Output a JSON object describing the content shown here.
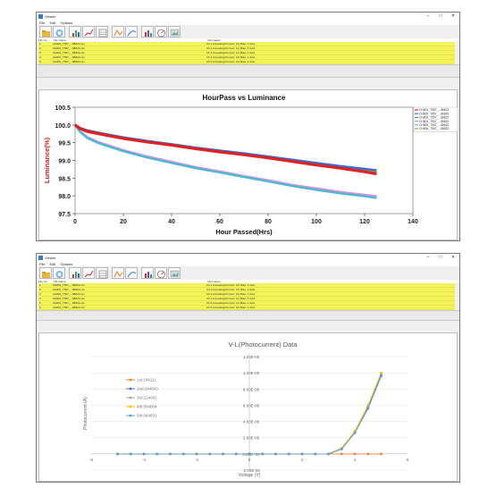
{
  "windows": [
    {
      "title": "Viewer",
      "menu": [
        "File",
        "Edit",
        "Options"
      ],
      "file_headers": {
        "no": "File No.",
        "name": "File Name",
        "info": "Information"
      },
      "files": [
        {
          "no": "1",
          "name": "CH801_T557_...88822.csv",
          "info": "Ch 1 Annealing/Current: CC Bias: 1.4mA"
        },
        {
          "no": "2",
          "name": "CH801_T557_...88822.csv",
          "info": "Ch 2 Annealing/Current: CC Bias: 1.4mA"
        },
        {
          "no": "3",
          "name": "CH801_T557_...88822.csv",
          "info": "Ch 3 Annealing/Current: CC Bias: 1.4mA"
        },
        {
          "no": "4",
          "name": "CH801_T557_...88822.csv",
          "info": "Ch 4 Annealing/Current: CC Bias: 1.4mA"
        },
        {
          "no": "5",
          "name": "CH801_T557_...88822.csv",
          "info": "Ch 5 Annealing/Current: CC Bias: 1.4mA"
        }
      ]
    },
    {
      "title": "Viewer",
      "menu": [
        "File",
        "Edit",
        "Options"
      ],
      "file_headers": {
        "no": "File No.",
        "name": "File Name",
        "info": "Information"
      },
      "files": [
        {
          "no": "1",
          "name": "CH801_T557_...88822.csv",
          "info": "Ch 1 Annealing/Current: CC Bias: 1.4mA"
        },
        {
          "no": "2",
          "name": "CH801_T557_...88822.csv",
          "info": "Ch 2 Annealing/Current: CC Bias: 1.4mA"
        },
        {
          "no": "3",
          "name": "CH801_T557_...88822.csv",
          "info": "Ch 3 Annealing/Current: CC Bias: 1.4mA"
        },
        {
          "no": "4",
          "name": "CH801_T557_...88822.csv",
          "info": "Ch 4 Annealing/Current: CC Bias: 1.4mA"
        },
        {
          "no": "5",
          "name": "CH801_T557_...88822.csv",
          "info": "Ch 5 Annealing/Current: CC Bias: 1.4mA"
        },
        {
          "no": "6",
          "name": "CH801_T557_...88822.csv",
          "info": "Ch 6 Annealing/Current: CC Bias: 1.4mA"
        }
      ]
    }
  ],
  "icons": [
    "open-folder-icon",
    "refresh-icon",
    "bar-chart-icon",
    "pencil-chart-icon",
    "table-icon",
    "peak-chart-icon",
    "curve-chart-icon",
    "color-chart-icon",
    "gauge-icon",
    "image-icon"
  ],
  "colors": {
    "yellow_row": "#f2f25a",
    "luminance_ylabel": "#c81e1e",
    "pass_series": [
      "#e22020",
      "#3a6bd0",
      "#3fae3f",
      "#d98fd0",
      "#4bb9d6",
      "#a8a23a"
    ],
    "vl_series": [
      "#ed7d31",
      "#4472c4",
      "#a5a5a5",
      "#ffc000",
      "#5b9bd5"
    ]
  },
  "chart_data": [
    {
      "type": "line",
      "title": "HourPass vs Luminance",
      "xlabel": "Hour Passed(Hrs)",
      "ylabel": "Luminance(%)",
      "xlim": [
        0,
        140
      ],
      "ylim": [
        97.5,
        100.5
      ],
      "xticks": [
        0,
        20,
        40,
        60,
        80,
        100,
        120,
        140
      ],
      "yticks": [
        97.5,
        98.0,
        98.5,
        99.0,
        99.5,
        100.0,
        100.5
      ],
      "legend_position": "top-right",
      "legend": [
        "CH801_T557_...88822",
        "CH802_T557_...88822",
        "CH803_T557_...88822",
        "CH804_T557_...88822",
        "CH805_T557_...88822",
        "CH806_T557_...88822"
      ],
      "series": [
        {
          "x": [
            0,
            2,
            5,
            10,
            20,
            30,
            40,
            50,
            60,
            70,
            80,
            90,
            100,
            110,
            120,
            125
          ],
          "y": [
            100.0,
            99.9,
            99.82,
            99.75,
            99.62,
            99.52,
            99.43,
            99.33,
            99.24,
            99.16,
            99.07,
            98.97,
            98.87,
            98.78,
            98.68,
            98.62
          ]
        },
        {
          "x": [
            0,
            2,
            5,
            10,
            20,
            30,
            40,
            50,
            60,
            70,
            80,
            90,
            100,
            110,
            120,
            125
          ],
          "y": [
            100.0,
            99.92,
            99.85,
            99.78,
            99.65,
            99.55,
            99.46,
            99.36,
            99.28,
            99.2,
            99.11,
            99.02,
            98.93,
            98.84,
            98.76,
            98.72
          ]
        },
        {
          "x": [
            0,
            2,
            5,
            10,
            20,
            30,
            40,
            50,
            60,
            70,
            80,
            90,
            100,
            110,
            120,
            125
          ],
          "y": [
            100.0,
            99.82,
            99.65,
            99.5,
            99.28,
            99.1,
            98.95,
            98.8,
            98.68,
            98.55,
            98.43,
            98.3,
            98.2,
            98.1,
            98.02,
            97.98
          ]
        },
        {
          "x": [
            0,
            2,
            5,
            10,
            20,
            30,
            40,
            50,
            60,
            70,
            80,
            90,
            100,
            110,
            120,
            125
          ],
          "y": [
            100.0,
            99.83,
            99.66,
            99.51,
            99.29,
            99.11,
            98.96,
            98.81,
            98.69,
            98.56,
            98.44,
            98.31,
            98.21,
            98.11,
            98.03,
            97.99
          ]
        },
        {
          "x": [
            0,
            2,
            5,
            10,
            20,
            30,
            40,
            50,
            60,
            70,
            80,
            90,
            100,
            110,
            120,
            125
          ],
          "y": [
            100.0,
            99.81,
            99.63,
            99.48,
            99.26,
            99.08,
            98.93,
            98.78,
            98.66,
            98.53,
            98.41,
            98.28,
            98.17,
            98.07,
            97.99,
            97.94
          ]
        },
        {
          "x": [
            0,
            2,
            5,
            10,
            20,
            30,
            40,
            50,
            60,
            70,
            80,
            90,
            100,
            110,
            120,
            125
          ],
          "y": [
            100.0,
            99.91,
            99.84,
            99.77,
            99.64,
            99.54,
            99.45,
            99.35,
            99.26,
            99.18,
            99.09,
            99.0,
            98.9,
            98.81,
            98.72,
            98.67
          ]
        }
      ]
    },
    {
      "type": "line",
      "title": "V-L(Photocurrent) Data",
      "xlabel": "Voltage (V)",
      "ylabel": "Photocurrent (A)",
      "xlim": [
        -6,
        6
      ],
      "ylim": [
        -2e-06,
        1.2e-05
      ],
      "xticks": [
        -6,
        -4,
        -2,
        0,
        2,
        4,
        6
      ],
      "yticks": [
        "-2.00E-06",
        "0.00E+00",
        "2.00E-06",
        "4.00E-06",
        "6.00E-06",
        "8.00E-06",
        "1.00E-05",
        "1.20E-05"
      ],
      "x": [
        -5,
        -4.5,
        -4,
        -3.5,
        -3,
        -2.5,
        -2,
        -1.5,
        -1,
        -0.5,
        0,
        0.5,
        1,
        1.5,
        2,
        2.5,
        3,
        3.5,
        4,
        4.5,
        5
      ],
      "legend_position": "left",
      "series": [
        {
          "name": "1st:184111",
          "values": [
            0,
            0,
            0,
            0,
            0,
            0,
            0,
            0,
            0,
            0,
            0,
            0,
            0,
            0,
            0,
            0,
            0,
            0,
            0,
            0,
            0
          ]
        },
        {
          "name": "2nd:184603",
          "values": [
            0,
            0,
            0,
            0,
            0,
            0,
            0,
            0,
            0,
            0,
            0,
            0,
            0,
            0,
            0,
            0,
            0,
            6e-07,
            2.6e-06,
            5.6e-06,
            9.6e-06
          ]
        },
        {
          "name": "3rd:224602",
          "values": [
            0,
            0,
            0,
            0,
            0,
            0,
            0,
            0,
            0,
            0,
            0,
            0,
            0,
            0,
            0,
            0,
            0,
            7e-07,
            2.7e-06,
            5.8e-06,
            9.8e-06
          ]
        },
        {
          "name": "4th:084604",
          "values": [
            0,
            0,
            0,
            0,
            0,
            0,
            0,
            0,
            0,
            0,
            0,
            0,
            0,
            0,
            0,
            0,
            0,
            7e-07,
            2.8e-06,
            6e-06,
            1e-05
          ]
        },
        {
          "name": "5th:084601",
          "values": [
            0,
            0,
            0,
            0,
            0,
            0,
            0,
            0,
            0,
            0,
            0,
            0,
            0,
            0,
            0,
            0,
            0,
            6e-07,
            2.6e-06,
            5.7e-06,
            9.7e-06
          ]
        }
      ]
    }
  ]
}
